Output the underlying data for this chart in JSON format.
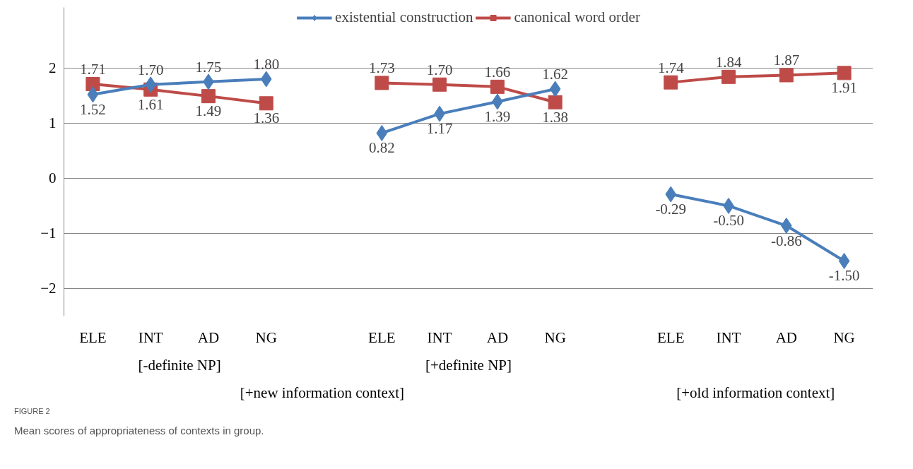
{
  "chart_data": {
    "type": "line",
    "categories": [
      "ELE",
      "INT",
      "AD",
      "NG",
      null,
      "ELE",
      "INT",
      "AD",
      "NG",
      null,
      "ELE",
      "INT",
      "AD",
      "NG"
    ],
    "series": [
      {
        "name": "existential construction",
        "color": "#4a7ebb",
        "marker": "diamond",
        "values": [
          1.52,
          1.7,
          1.75,
          1.8,
          null,
          0.82,
          1.17,
          1.39,
          1.62,
          null,
          -0.29,
          -0.5,
          -0.86,
          -1.5
        ],
        "value_labels": [
          "1.52",
          "1.70",
          "1.75",
          "1.80",
          null,
          "0.82",
          "1.17",
          "1.39",
          "1.62",
          null,
          "-0.29",
          "-0.50",
          "-0.86",
          "-1.50"
        ]
      },
      {
        "name": "canonical word order",
        "color": "#be4b48",
        "marker": "square",
        "values": [
          1.71,
          1.61,
          1.49,
          1.36,
          null,
          1.73,
          1.7,
          1.66,
          1.38,
          null,
          1.74,
          1.84,
          1.87,
          1.91
        ],
        "value_labels": [
          "1.71",
          "1.61",
          "1.49",
          "1.36",
          null,
          "1.73",
          "1.70",
          "1.66",
          "1.38",
          null,
          "1.74",
          "1.84",
          "1.87",
          "1.91"
        ]
      }
    ],
    "ylim": [
      -2.5,
      3.1
    ],
    "yticks": [
      -2,
      -1,
      0,
      1,
      2
    ],
    "grid": "y",
    "legend": "top",
    "annotations": [
      "[-definite NP]",
      "[+definite NP]",
      "[+new information  context]",
      "[+old information  context]",
      "FIGURE 2",
      "Mean scores of appropriateness of contexts in group."
    ]
  }
}
